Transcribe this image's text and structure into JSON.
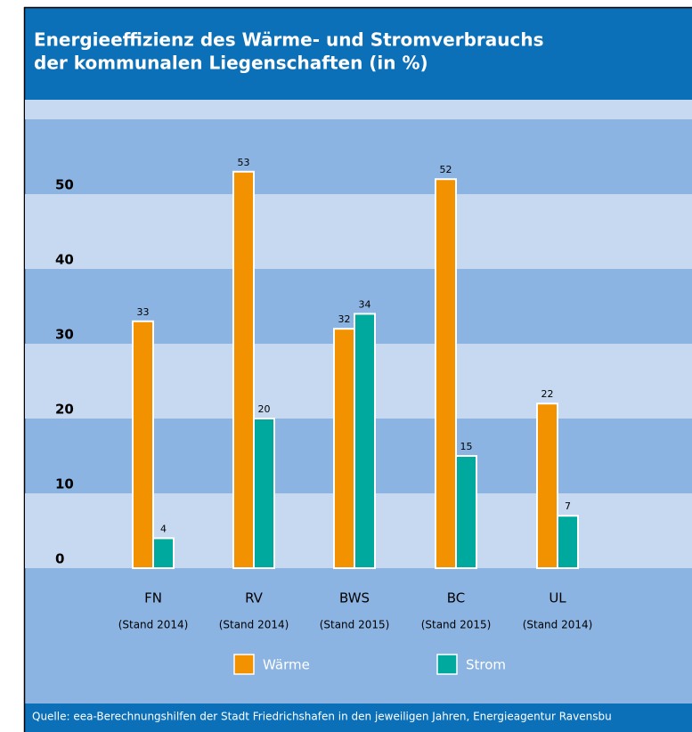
{
  "chart_data": {
    "type": "bar",
    "title": "Energieeffizienz des Wärme- und Stromverbrauchs der kommunalen Liegenschaften (in %)",
    "title_lines": [
      "Energieeffizienz des Wärme- und Stromverbrauchs",
      "der kommunalen Liegenschaften (in %)"
    ],
    "y_label": "%",
    "categories": [
      "FN",
      "RV",
      "BWS",
      "BC",
      "UL"
    ],
    "category_notes": [
      "(Stand 2014)",
      "(Stand 2014)",
      "(Stand 2015)",
      "(Stand 2015)",
      "(Stand 2014)"
    ],
    "series": [
      {
        "name": "Wärme",
        "color": "#f39200",
        "values": [
          33,
          53,
          32,
          52,
          22
        ]
      },
      {
        "name": "Strom",
        "color": "#00a99d",
        "values": [
          4,
          20,
          34,
          15,
          7
        ]
      }
    ],
    "ylim": [
      0,
      60
    ],
    "yticks": [
      0,
      10,
      20,
      30,
      40,
      50
    ],
    "source": "Quelle: eea-Berechnungshilfen der Stadt Friedrichshafen in den jeweiligen Jahren, Energieagentur Ravensbu"
  }
}
